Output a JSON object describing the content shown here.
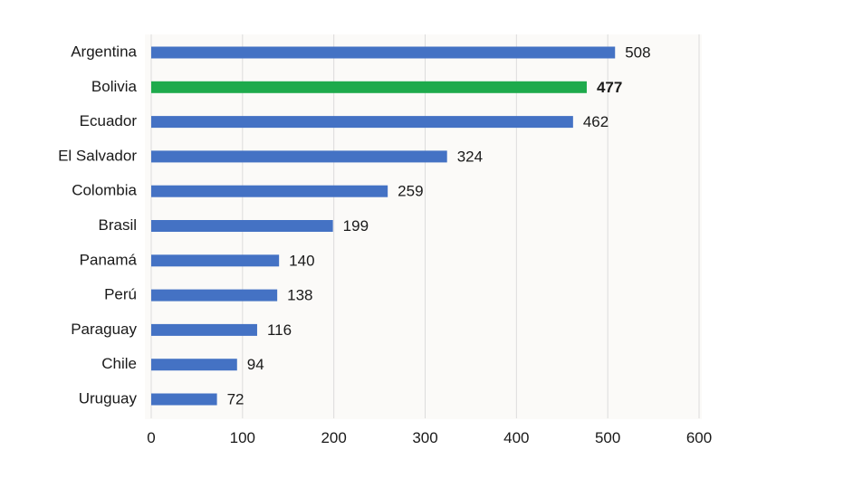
{
  "chart_data": {
    "type": "bar",
    "orientation": "horizontal",
    "title": "",
    "xlabel": "",
    "ylabel": "",
    "categories": [
      "Argentina",
      "Bolivia",
      "Ecuador",
      "El Salvador",
      "Colombia",
      "Brasil",
      "Panamá",
      "Perú",
      "Paraguay",
      "Chile",
      "Uruguay"
    ],
    "values": [
      508,
      477,
      462,
      324,
      259,
      199,
      140,
      138,
      116,
      94,
      72
    ],
    "highlight": "Bolivia",
    "xlim": [
      0,
      600
    ],
    "xticks": [
      0,
      100,
      200,
      300,
      400,
      500,
      600
    ],
    "grid": true,
    "colors": {
      "default": "#4472c4",
      "highlight": "#1eaa4c",
      "background": "#fbfaf8",
      "grid": "#dcdcdc"
    }
  }
}
